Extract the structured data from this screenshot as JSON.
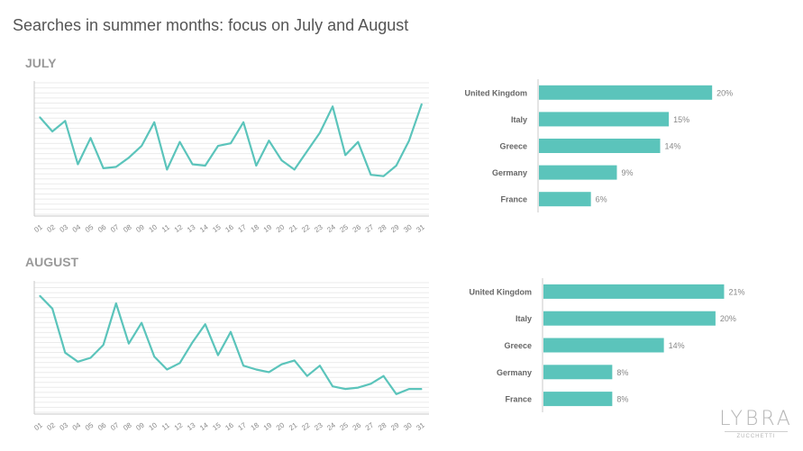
{
  "title": "Searches in summer months: focus on July and August",
  "colors": {
    "series": "#5bc4bb",
    "grid": "#ebebeb",
    "axis": "#c8c8c8",
    "label": "#888888",
    "catlabel": "#666666"
  },
  "logo": {
    "main": "LYBRA",
    "sub": "ZUCCHETTI"
  },
  "chart_data": [
    {
      "type": "line",
      "section_label": "JULY",
      "x": [
        "01",
        "02",
        "03",
        "04",
        "05",
        "06",
        "07",
        "08",
        "09",
        "10",
        "11",
        "12",
        "13",
        "14",
        "15",
        "16",
        "17",
        "18",
        "19",
        "20",
        "21",
        "22",
        "23",
        "24",
        "25",
        "26",
        "27",
        "28",
        "29",
        "30",
        "31"
      ],
      "values": [
        74,
        63,
        71,
        38,
        58,
        35,
        36,
        43,
        52,
        70,
        34,
        55,
        38,
        37,
        52,
        54,
        70,
        37,
        56,
        41,
        34,
        48,
        62,
        82,
        45,
        55,
        30,
        29,
        37,
        56,
        84
      ],
      "ylim": [
        0,
        100
      ],
      "grid": true
    },
    {
      "type": "bar",
      "orientation": "horizontal",
      "categories": [
        "United Kingdom",
        "Italy",
        "Greece",
        "Germany",
        "France"
      ],
      "values": [
        20,
        15,
        14,
        9,
        6
      ],
      "value_labels": [
        "20%",
        "15%",
        "14%",
        "9%",
        "6%"
      ],
      "xlim": [
        0,
        23
      ]
    },
    {
      "type": "line",
      "section_label": "AUGUST",
      "x": [
        "01",
        "02",
        "03",
        "04",
        "05",
        "06",
        "07",
        "08",
        "09",
        "10",
        "11",
        "12",
        "13",
        "14",
        "15",
        "16",
        "17",
        "18",
        "19",
        "20",
        "21",
        "22",
        "23",
        "24",
        "25",
        "26",
        "27",
        "28",
        "29",
        "30",
        "31"
      ],
      "values": [
        90,
        80,
        46,
        39,
        42,
        52,
        84,
        53,
        69,
        43,
        33,
        38,
        54,
        68,
        44,
        62,
        36,
        33,
        31,
        37,
        40,
        28,
        36,
        20,
        18,
        19,
        22,
        28,
        14,
        18,
        18
      ],
      "ylim": [
        0,
        100
      ],
      "grid": true
    },
    {
      "type": "bar",
      "orientation": "horizontal",
      "categories": [
        "United Kingdom",
        "Italy",
        "Greece",
        "Germany",
        "France"
      ],
      "values": [
        21,
        20,
        14,
        8,
        8
      ],
      "value_labels": [
        "21%",
        "20%",
        "14%",
        "8%",
        "8%"
      ],
      "xlim": [
        0,
        22
      ]
    }
  ]
}
